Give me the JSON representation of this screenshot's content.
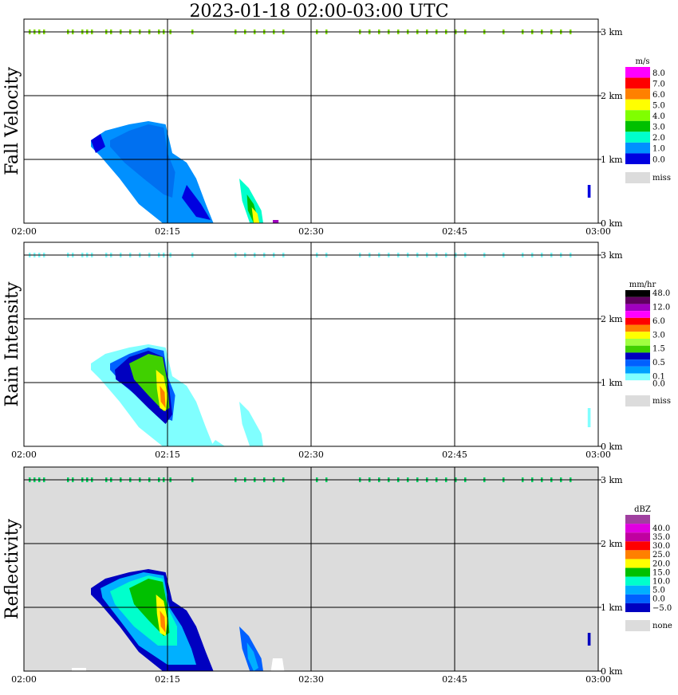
{
  "title": "2023-01-18   02:00-03:00 UTC",
  "x_ticks": [
    "02:00",
    "02:15",
    "02:30",
    "02:45",
    "03:00"
  ],
  "y_ticks": [
    "0 km",
    "1 km",
    "2 km",
    "3 km"
  ],
  "panels": [
    {
      "id": "fall-velocity",
      "ylabel": "Fall Velocity",
      "unit": "m/s",
      "background": "#ffffff",
      "legend": [
        {
          "label": "8.0",
          "color": "#ff00ff"
        },
        {
          "label": "7.0",
          "color": "#ff0000"
        },
        {
          "label": "6.0",
          "color": "#ff8000"
        },
        {
          "label": "5.0",
          "color": "#ffff00"
        },
        {
          "label": "4.0",
          "color": "#80ff00"
        },
        {
          "label": "3.0",
          "color": "#00c000"
        },
        {
          "label": "2.0",
          "color": "#00ffcc"
        },
        {
          "label": "1.0",
          "color": "#0090ff"
        },
        {
          "label": "0.0",
          "color": "#0000e0"
        }
      ],
      "miss_label": "miss"
    },
    {
      "id": "rain-intensity",
      "ylabel": "Rain Intensity",
      "unit": "mm/hr",
      "background": "#ffffff",
      "legend": [
        {
          "label": "48.0",
          "color": "#000000"
        },
        {
          "label": "",
          "color": "#600060"
        },
        {
          "label": "12.0",
          "color": "#a000c0"
        },
        {
          "label": "",
          "color": "#ff00ff"
        },
        {
          "label": "6.0",
          "color": "#ff0000"
        },
        {
          "label": "",
          "color": "#ff8000"
        },
        {
          "label": "3.0",
          "color": "#ffff00"
        },
        {
          "label": "",
          "color": "#a0ff40"
        },
        {
          "label": "1.5",
          "color": "#40d000"
        },
        {
          "label": "",
          "color": "#0000c0"
        },
        {
          "label": "0.5",
          "color": "#0060ff"
        },
        {
          "label": "",
          "color": "#00a0ff"
        },
        {
          "label": "0.1",
          "color": "#80ffff"
        },
        {
          "label": "0.0",
          "color": "#ffffff"
        }
      ],
      "miss_label": "miss"
    },
    {
      "id": "reflectivity",
      "ylabel": "Reflectivity",
      "unit": "dBZ",
      "background": "#dcdcdc",
      "legend": [
        {
          "label": "",
          "color": "#a040a0"
        },
        {
          "label": "40.0",
          "color": "#e000e0"
        },
        {
          "label": "35.0",
          "color": "#c000a0"
        },
        {
          "label": "30.0",
          "color": "#ff0000"
        },
        {
          "label": "25.0",
          "color": "#ff8000"
        },
        {
          "label": "20.0",
          "color": "#ffff00"
        },
        {
          "label": "15.0",
          "color": "#00c000"
        },
        {
          "label": "10.0",
          "color": "#00ffcc"
        },
        {
          "label": "5.0",
          "color": "#00b0ff"
        },
        {
          "label": "0.0",
          "color": "#0060ff"
        },
        {
          "label": "−5.0",
          "color": "#0000c0"
        }
      ],
      "miss_label": "none"
    }
  ],
  "chart_data": {
    "type": "heatmap",
    "title": "2023-01-18   02:00-03:00 UTC",
    "x_range": [
      "02:00",
      "03:00"
    ],
    "y_range_km": [
      0,
      3.0
    ],
    "grid": true,
    "series": [
      {
        "name": "Fall Velocity",
        "unit": "m/s",
        "note_cells": [
          {
            "t": "02:07-02:20",
            "h_km": [
              0,
              1.5
            ],
            "value_range": [
              0,
              2
            ]
          },
          {
            "t": "02:23-02:25",
            "h_km": [
              0,
              0.7
            ],
            "value_range": [
              2,
              4
            ]
          },
          {
            "t": "02:59",
            "h_km": [
              0.4,
              0.6
            ],
            "value_range": [
              0,
              1
            ]
          }
        ]
      },
      {
        "name": "Rain Intensity",
        "unit": "mm/hr",
        "note_cells": [
          {
            "t": "02:07-02:20",
            "h_km": [
              0,
              1.6
            ],
            "value_range": [
              0.1,
              6.0
            ]
          },
          {
            "t": "02:22-02:27",
            "h_km": [
              0,
              0.7
            ],
            "value_range": [
              0.0,
              0.1
            ]
          }
        ]
      },
      {
        "name": "Reflectivity",
        "unit": "dBZ",
        "note_cells": [
          {
            "t": "02:07-02:20",
            "h_km": [
              0,
              1.6
            ],
            "value_range": [
              -5,
              25
            ]
          },
          {
            "t": "02:23-02:25",
            "h_km": [
              0,
              0.7
            ],
            "value_range": [
              -5,
              10
            ]
          }
        ]
      }
    ]
  }
}
